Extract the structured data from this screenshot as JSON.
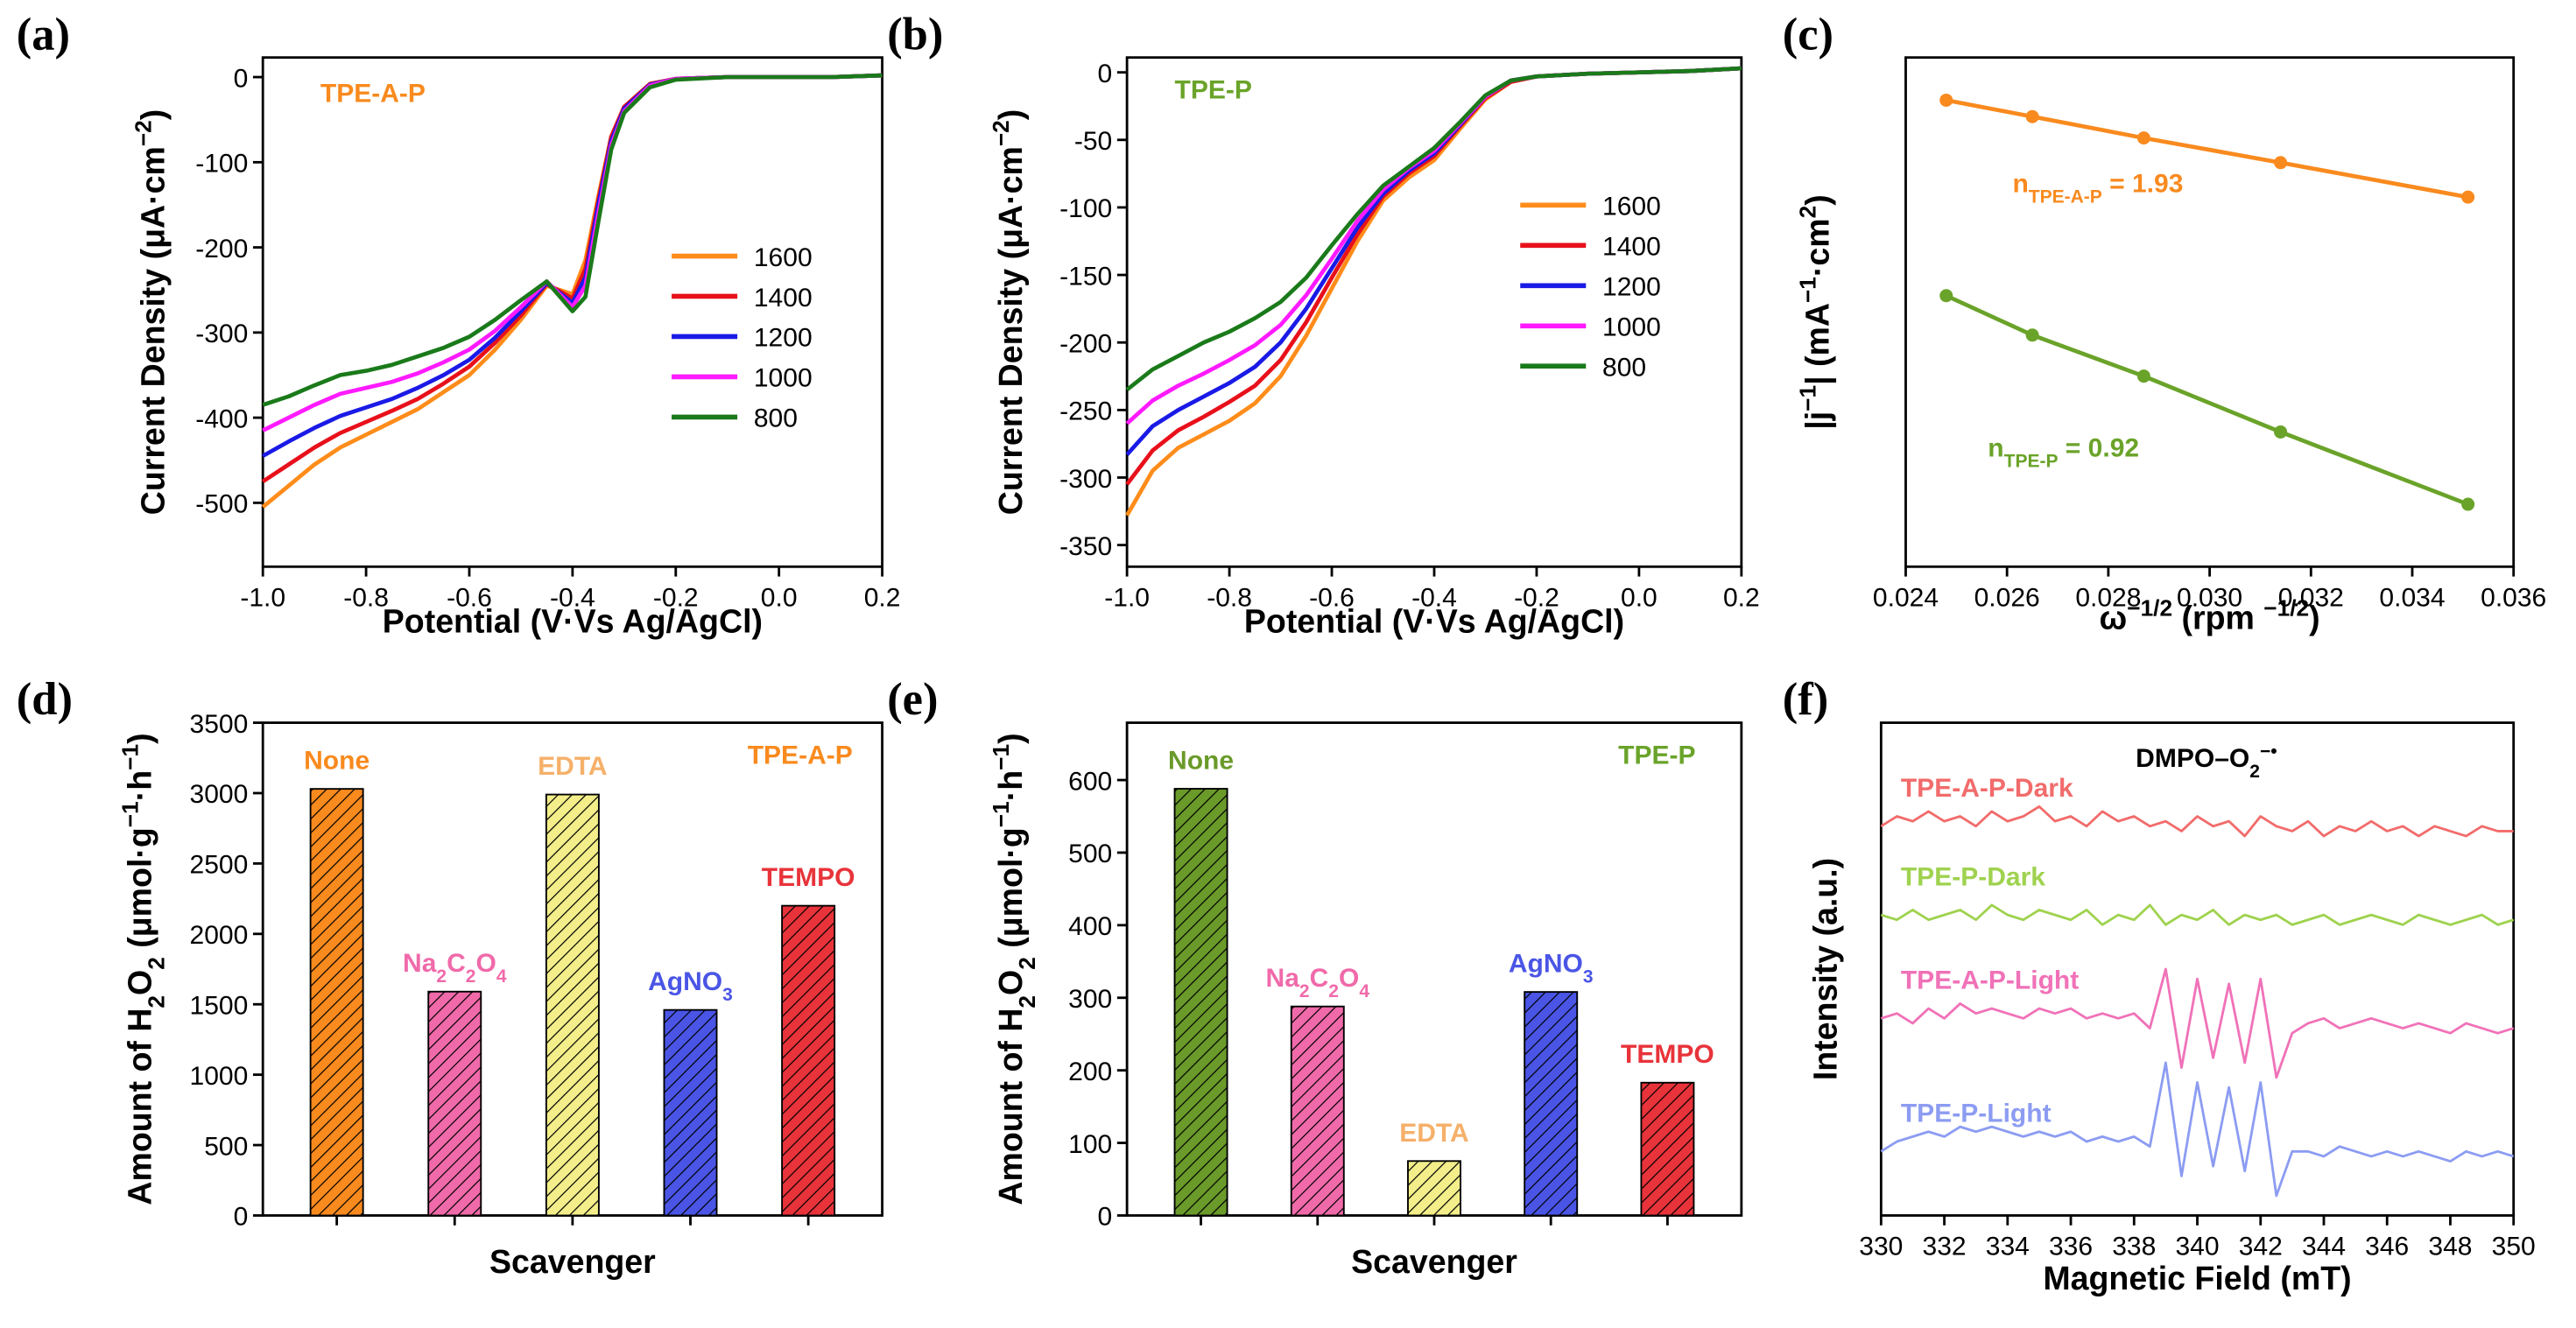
{
  "chart_data": [
    {
      "type": "line",
      "label": "(a)",
      "xlabel": "Potential (V·Vs Ag/AgCl)",
      "ylabel": [
        {
          "text": "Current Density (μA·cm"
        },
        {
          "text": "−2",
          "shift": "super"
        },
        {
          "text": ")"
        }
      ],
      "annotations": [
        {
          "parts": [
            {
              "text": "TPE-A-P"
            }
          ],
          "color": "#f98a1e"
        }
      ],
      "legend": "center right",
      "xlim": [
        -1.0,
        0.2
      ],
      "xticks": [
        {
          "value": -1,
          "label": "-1.0"
        },
        -0.8,
        -0.6,
        -0.4,
        -0.2,
        {
          "value": 0,
          "label": "0.0"
        },
        0.2
      ],
      "ylim": [
        -575,
        23
      ],
      "yticks": [
        0,
        -100,
        -200,
        -300,
        -400,
        -500
      ],
      "x": [
        -1.0,
        -0.95,
        -0.9,
        -0.85,
        -0.8,
        -0.75,
        -0.7,
        -0.65,
        -0.6,
        -0.55,
        -0.5,
        -0.45,
        -0.4,
        -0.375,
        -0.35,
        -0.325,
        -0.3,
        -0.25,
        -0.2,
        -0.1,
        0,
        0.1,
        0.2
      ],
      "series": [
        {
          "name": "1600",
          "color": "#ff8c1a",
          "values": [
            -505,
            -480,
            -455,
            -435,
            -420,
            -405,
            -390,
            -370,
            -350,
            -320,
            -285,
            -245,
            -255,
            -215,
            -140,
            -70,
            -35,
            -8,
            -2,
            0,
            0,
            0,
            2
          ]
        },
        {
          "name": "1400",
          "color": "#e8101a",
          "values": [
            -475,
            -455,
            -435,
            -418,
            -405,
            -392,
            -378,
            -360,
            -340,
            -312,
            -280,
            -243,
            -260,
            -225,
            -145,
            -70,
            -35,
            -8,
            -2,
            0,
            0,
            0,
            2
          ]
        },
        {
          "name": "1200",
          "color": "#1a1ae6",
          "values": [
            -445,
            -428,
            -412,
            -398,
            -388,
            -378,
            -365,
            -350,
            -332,
            -306,
            -275,
            -242,
            -265,
            -235,
            -150,
            -75,
            -37,
            -9,
            -2,
            0,
            0,
            0,
            2
          ]
        },
        {
          "name": "1000",
          "color": "#ff1aff",
          "values": [
            -415,
            -400,
            -385,
            -372,
            -365,
            -358,
            -348,
            -335,
            -320,
            -298,
            -270,
            -240,
            -270,
            -245,
            -160,
            -80,
            -40,
            -10,
            -2,
            0,
            0,
            0,
            2
          ]
        },
        {
          "name": "800",
          "color": "#1a7a1a",
          "values": [
            -385,
            -375,
            -362,
            -350,
            -345,
            -338,
            -328,
            -318,
            -305,
            -285,
            -262,
            -240,
            -275,
            -258,
            -170,
            -85,
            -42,
            -12,
            -3,
            0,
            0,
            0,
            2
          ]
        }
      ]
    },
    {
      "type": "line",
      "label": "(b)",
      "xlabel": "Potential (V·Vs Ag/AgCl)",
      "ylabel": [
        {
          "text": "Current Density (μA·cm"
        },
        {
          "text": "−2",
          "shift": "super"
        },
        {
          "text": ")"
        }
      ],
      "annotations": [
        {
          "parts": [
            {
              "text": "TPE-P"
            }
          ],
          "color": "#6aa329"
        }
      ],
      "legend": "upper right",
      "xlim": [
        -1.0,
        0.2
      ],
      "xticks": [
        {
          "value": -1,
          "label": "-1.0"
        },
        -0.8,
        -0.6,
        -0.4,
        -0.2,
        {
          "value": 0,
          "label": "0.0"
        },
        0.2
      ],
      "ylim": [
        -366,
        11
      ],
      "yticks": [
        0,
        -50,
        -100,
        -150,
        -200,
        -250,
        -300,
        -350
      ],
      "x": [
        -1.0,
        -0.95,
        -0.9,
        -0.85,
        -0.8,
        -0.75,
        -0.7,
        -0.65,
        -0.6,
        -0.55,
        -0.5,
        -0.45,
        -0.4,
        -0.35,
        -0.3,
        -0.25,
        -0.2,
        -0.1,
        0,
        0.1,
        0.2
      ],
      "series": [
        {
          "name": "1600",
          "color": "#ff8c1a",
          "values": [
            -328,
            -295,
            -278,
            -268,
            -258,
            -245,
            -225,
            -195,
            -160,
            -125,
            -95,
            -78,
            -65,
            -42,
            -20,
            -7,
            -3,
            -1,
            0,
            1,
            3
          ]
        },
        {
          "name": "1400",
          "color": "#e8101a",
          "values": [
            -305,
            -280,
            -265,
            -255,
            -244,
            -232,
            -213,
            -185,
            -152,
            -120,
            -92,
            -75,
            -62,
            -40,
            -19,
            -7,
            -3,
            -1,
            0,
            1,
            3
          ]
        },
        {
          "name": "1200",
          "color": "#1a1ae6",
          "values": [
            -283,
            -262,
            -250,
            -240,
            -230,
            -218,
            -200,
            -175,
            -145,
            -115,
            -90,
            -73,
            -60,
            -39,
            -18,
            -6,
            -3,
            -1,
            0,
            1,
            3
          ]
        },
        {
          "name": "1000",
          "color": "#ff1aff",
          "values": [
            -260,
            -243,
            -232,
            -223,
            -213,
            -202,
            -187,
            -165,
            -138,
            -110,
            -87,
            -71,
            -58,
            -38,
            -18,
            -6,
            -3,
            -1,
            0,
            1,
            3
          ]
        },
        {
          "name": "800",
          "color": "#1a7a1a",
          "values": [
            -235,
            -220,
            -210,
            -200,
            -192,
            -182,
            -170,
            -152,
            -128,
            -105,
            -84,
            -70,
            -56,
            -37,
            -17,
            -6,
            -3,
            -1,
            0,
            1,
            3
          ]
        }
      ]
    },
    {
      "type": "line",
      "label": "(c)",
      "markers": true,
      "xlabel": [
        {
          "text": "ω"
        },
        {
          "text": "−1/2",
          "shift": "super"
        },
        {
          "text": " (rpm "
        },
        {
          "text": "−1/2",
          "shift": "super"
        },
        {
          "text": ")"
        }
      ],
      "ylabel": [
        {
          "text": "|j"
        },
        {
          "text": "−1",
          "shift": "super"
        },
        {
          "text": "| (mA"
        },
        {
          "text": "−1",
          "shift": "super"
        },
        {
          "text": "·cm"
        },
        {
          "text": "2",
          "shift": "super"
        },
        {
          "text": ")"
        }
      ],
      "annotations": [
        {
          "parts": [
            {
              "text": "n"
            },
            {
              "text": "TPE-A-P",
              "shift": "sub"
            },
            {
              "text": " = 1.93"
            }
          ],
          "color": "#f98a1e"
        },
        {
          "parts": [
            {
              "text": "n"
            },
            {
              "text": "TPE-P",
              "shift": "sub"
            },
            {
              "text": " = 0.92"
            }
          ],
          "color": "#6aa329"
        }
      ],
      "xlim": [
        0.024,
        0.036
      ],
      "xticks": [
        0.024,
        0.026,
        0.028,
        {
          "value": 0.03,
          "label": "0.030"
        },
        0.032,
        0.034,
        0.036
      ],
      "ylim": [
        0,
        310
      ],
      "x": [
        0.0248,
        0.0265,
        0.0287,
        0.0314,
        0.0351
      ],
      "series": [
        {
          "color": "#f98a1e",
          "values": [
            284,
            274,
            261,
            246,
            225
          ]
        },
        {
          "color": "#6aa329",
          "values": [
            165,
            141,
            116,
            82,
            38
          ]
        }
      ]
    },
    {
      "type": "bar",
      "label": "(d)",
      "xlabel": "Scavenger",
      "ylabel": [
        {
          "text": "Amount of H"
        },
        {
          "text": "2",
          "shift": "sub"
        },
        {
          "text": "O"
        },
        {
          "text": "2",
          "shift": "sub"
        },
        {
          "text": " (μmol·g"
        },
        {
          "text": "−1",
          "shift": "super"
        },
        {
          "text": "·h"
        },
        {
          "text": "−1",
          "shift": "super"
        },
        {
          "text": ")"
        }
      ],
      "annotations": [
        {
          "parts": [
            {
              "text": "TPE-A-P"
            }
          ],
          "color": "#f98a1e"
        }
      ],
      "categories": [
        [
          {
            "text": "None"
          }
        ],
        [
          {
            "text": "Na"
          },
          {
            "text": "2",
            "shift": "sub"
          },
          {
            "text": "C"
          },
          {
            "text": "2",
            "shift": "sub"
          },
          {
            "text": "O"
          },
          {
            "text": "4",
            "shift": "sub"
          }
        ],
        [
          {
            "text": "EDTA"
          }
        ],
        [
          {
            "text": "AgNO"
          },
          {
            "text": "3",
            "shift": "sub"
          }
        ],
        [
          {
            "text": "TEMPO"
          }
        ]
      ],
      "values": [
        3030,
        1590,
        2990,
        1460,
        2200
      ],
      "colors": [
        "#f98a1e",
        "#f06aaa",
        "#f3ee8a",
        "#4a55e6",
        "#e8333a"
      ],
      "label_colors": [
        "#f98a1e",
        "#f06aaa",
        "#f5b06a",
        "#4a55e6",
        "#e8333a"
      ],
      "ylim": [
        0,
        3500
      ],
      "yticks": [
        0,
        500,
        1000,
        1500,
        2000,
        2500,
        3000,
        3500
      ]
    },
    {
      "type": "bar",
      "label": "(e)",
      "xlabel": "Scavenger",
      "ylabel": [
        {
          "text": "Amount of H"
        },
        {
          "text": "2",
          "shift": "sub"
        },
        {
          "text": "O"
        },
        {
          "text": "2",
          "shift": "sub"
        },
        {
          "text": " (μmol·g"
        },
        {
          "text": "−1",
          "shift": "super"
        },
        {
          "text": "·h"
        },
        {
          "text": "−1",
          "shift": "super"
        },
        {
          "text": ")"
        }
      ],
      "annotations": [
        {
          "parts": [
            {
              "text": "TPE-P"
            }
          ],
          "color": "#6aa329"
        }
      ],
      "categories": [
        [
          {
            "text": "None"
          }
        ],
        [
          {
            "text": "Na"
          },
          {
            "text": "2",
            "shift": "sub"
          },
          {
            "text": "C"
          },
          {
            "text": "2",
            "shift": "sub"
          },
          {
            "text": "O"
          },
          {
            "text": "4",
            "shift": "sub"
          }
        ],
        [
          {
            "text": "EDTA"
          }
        ],
        [
          {
            "text": "AgNO"
          },
          {
            "text": "3",
            "shift": "sub"
          }
        ],
        [
          {
            "text": "TEMPO"
          }
        ]
      ],
      "values": [
        588,
        288,
        75,
        308,
        183
      ],
      "colors": [
        "#6a9a2a",
        "#f06aaa",
        "#f3ee8a",
        "#4a55e6",
        "#e8333a"
      ],
      "label_colors": [
        "#6a9a2a",
        "#f06aaa",
        "#f5b06a",
        "#4a55e6",
        "#e8333a"
      ],
      "ylim": [
        0,
        679
      ],
      "yticks": [
        0,
        100,
        200,
        300,
        400,
        500,
        600
      ]
    },
    {
      "type": "line",
      "label": "(f)",
      "xlabel": "Magnetic Field (mT)",
      "ylabel": "Intensity (a.u.)",
      "annotations": [
        {
          "parts": [
            {
              "text": "DMPO–O"
            },
            {
              "text": "2",
              "shift": "sub"
            },
            {
              "text": "−•",
              "shift": "super"
            }
          ],
          "color": "#000000"
        }
      ],
      "legend": "inline",
      "xlim": [
        330,
        350
      ],
      "xticks": [
        330,
        332,
        334,
        336,
        338,
        340,
        342,
        344,
        346,
        348,
        350
      ],
      "ylim": [
        0,
        100
      ],
      "x": [
        330,
        330.5,
        331,
        331.5,
        332,
        332.5,
        333,
        333.5,
        334,
        334.5,
        335,
        335.5,
        336,
        336.5,
        337,
        337.5,
        338,
        338.5,
        339,
        339.5,
        340,
        340.5,
        341,
        341.5,
        342,
        342.5,
        343,
        343.5,
        344,
        344.5,
        345,
        345.5,
        346,
        346.5,
        347,
        347.5,
        348,
        348.5,
        349,
        349.5,
        350
      ],
      "series": [
        {
          "name": "TPE-A-P-Dark",
          "color": "#f26b6b",
          "values": [
            79,
            81,
            80,
            82,
            80,
            81,
            79,
            82,
            80,
            81,
            83,
            80,
            81,
            79,
            82,
            80,
            81,
            79,
            80,
            78,
            81,
            79,
            80,
            77,
            81,
            79,
            78,
            80,
            77,
            79,
            78,
            80,
            78,
            79,
            77,
            79,
            78,
            77,
            79,
            78,
            78
          ]
        },
        {
          "name": "TPE-P-Dark",
          "color": "#9fd24f",
          "values": [
            61,
            60,
            62,
            60,
            61,
            62,
            60,
            63,
            61,
            60,
            62,
            61,
            60,
            62,
            59,
            61,
            60,
            63,
            59,
            61,
            60,
            62,
            59,
            61,
            60,
            61,
            59,
            60,
            61,
            59,
            60,
            61,
            60,
            59,
            61,
            60,
            59,
            60,
            61,
            59,
            60
          ]
        },
        {
          "name": "TPE-A-P-Light",
          "color": "#f072b8",
          "values": [
            40,
            41,
            39,
            42,
            40,
            43,
            41,
            42,
            41,
            40,
            42,
            41,
            42,
            40,
            41,
            40,
            41,
            38,
            50,
            30,
            48,
            32,
            47,
            31,
            48,
            28,
            37,
            39,
            40,
            38,
            39,
            40,
            39,
            38,
            39,
            38,
            37,
            39,
            38,
            37,
            38
          ]
        },
        {
          "name": "TPE-P-Light",
          "color": "#8c9cf2",
          "values": [
            13,
            15,
            16,
            17,
            16,
            18,
            17,
            18,
            17,
            16,
            17,
            16,
            17,
            15,
            16,
            15,
            16,
            14,
            31,
            8,
            27,
            10,
            26,
            9,
            27,
            4,
            13,
            13,
            12,
            14,
            13,
            12,
            13,
            12,
            13,
            12,
            11,
            13,
            12,
            13,
            12
          ]
        }
      ]
    }
  ]
}
